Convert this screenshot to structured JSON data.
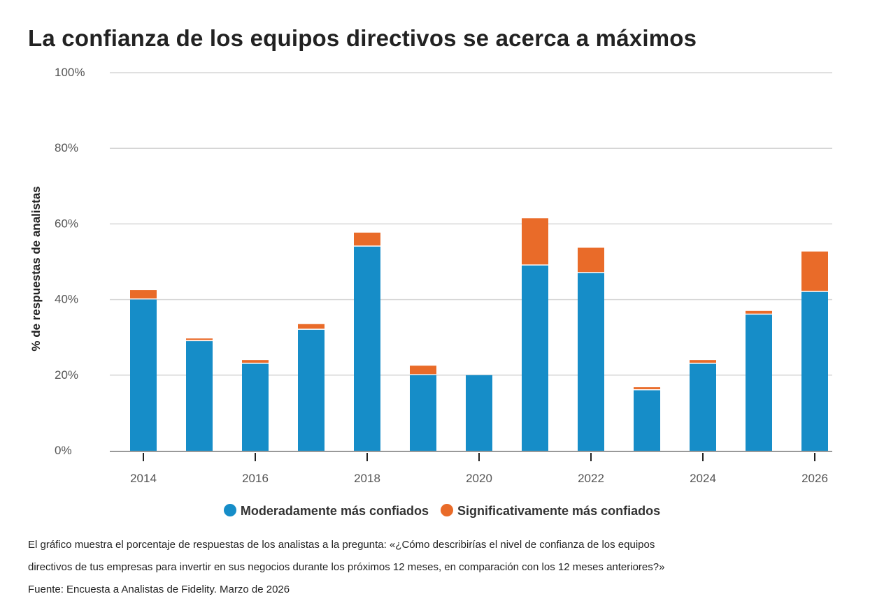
{
  "title": "La confianza de los equipos directivos se acerca a máximos",
  "colors": {
    "moderate": "#168dc8",
    "significant": "#e96b29",
    "grid": "#d6d6d6",
    "axis": "#999999"
  },
  "chart_data": {
    "type": "bar",
    "stacked": true,
    "ylabel": "% de respuestas de analistas",
    "xlabel": "",
    "ylim": [
      0,
      100
    ],
    "yticks": [
      "0%",
      "20%",
      "40%",
      "60%",
      "80%",
      "100%"
    ],
    "ytick_values": [
      0,
      20,
      40,
      60,
      80,
      100
    ],
    "categories": [
      2014,
      2015,
      2016,
      2017,
      2018,
      2019,
      2020,
      2021,
      2022,
      2023,
      2024,
      2025,
      2026
    ],
    "xtick_labels": [
      "2014",
      "2016",
      "2018",
      "2020",
      "2022",
      "2024",
      "2026"
    ],
    "xtick_values": [
      2014,
      2016,
      2018,
      2020,
      2022,
      2024,
      2026
    ],
    "series": [
      {
        "name": "Moderadamente más confiados",
        "values": [
          40,
          29,
          23,
          32,
          54,
          20,
          20,
          49,
          47,
          16,
          23,
          36,
          42
        ]
      },
      {
        "name": "Significativamente más confiados",
        "values": [
          2.5,
          0.7,
          1,
          1.5,
          3.7,
          2.5,
          0,
          12.5,
          6.7,
          0.8,
          1,
          1,
          10.7
        ]
      }
    ],
    "grid": true,
    "legend_position": "bottom-center"
  },
  "footnote": {
    "line1": "El gráfico muestra el porcentaje de respuestas de los analistas a la pregunta: «¿Cómo describirías el nivel de confianza de los equipos",
    "line2": "directivos de tus empresas para invertir en sus negocios durante los próximos 12 meses, en comparación con los 12 meses anteriores?»",
    "source": "Fuente: Encuesta a Analistas de Fidelity. Marzo de 2026"
  }
}
